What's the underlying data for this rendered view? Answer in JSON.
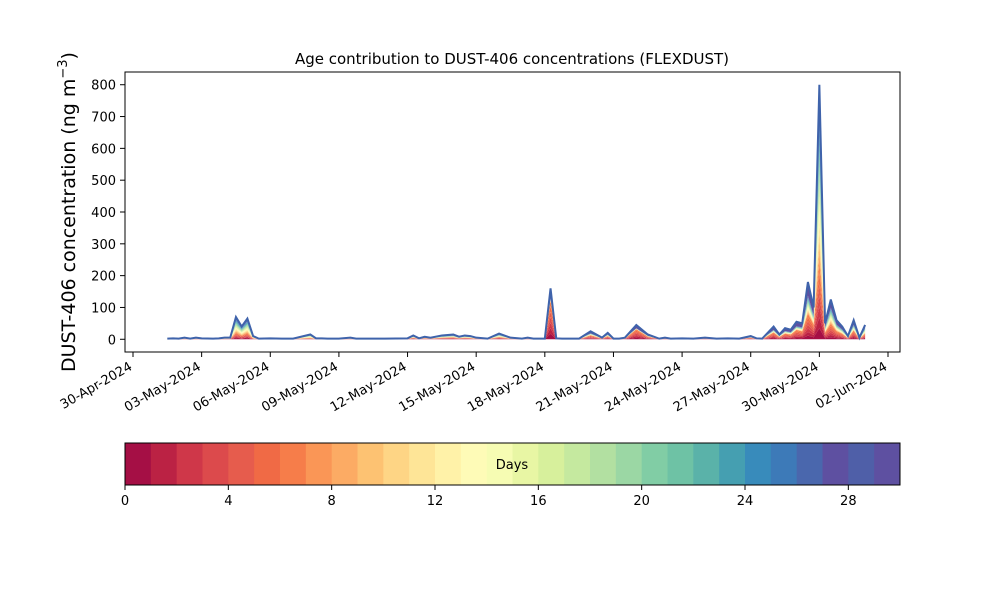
{
  "chart_data": {
    "type": "area",
    "title": "Age contribution to DUST-406 concentrations (FLEXDUST)",
    "ylabel_main": "DUST-406 concentration (ng m",
    "ylabel_sup": "−3",
    "ylabel_close": ")",
    "xlabel": "",
    "ylim": [
      -40,
      840
    ],
    "yticks": [
      0,
      100,
      200,
      300,
      400,
      500,
      600,
      700,
      800
    ],
    "x_start": "2024-04-30",
    "x_end": "2024-06-02",
    "xticks": [
      "30-Apr-2024",
      "03-May-2024",
      "06-May-2024",
      "09-May-2024",
      "12-May-2024",
      "15-May-2024",
      "18-May-2024",
      "21-May-2024",
      "24-May-2024",
      "27-May-2024",
      "30-May-2024",
      "02-Jun-2024"
    ],
    "xtick_days": [
      0,
      3,
      6,
      9,
      12,
      15,
      18,
      21,
      24,
      27,
      30,
      33
    ],
    "grid": false,
    "series": [
      {
        "x_days": [
          1.5,
          1.75,
          2.0,
          2.25,
          2.5,
          2.75,
          3.0,
          3.5,
          3.75,
          4.0,
          4.25,
          4.5,
          4.75,
          5.0,
          5.25,
          5.5,
          6.0,
          6.5,
          7.0,
          7.75,
          8.0,
          8.25,
          8.5,
          9.0,
          9.5,
          9.75,
          10.0,
          11.0,
          12.0,
          12.25,
          12.5,
          12.75,
          13.0,
          13.5,
          14.0,
          14.25,
          14.5,
          14.75,
          15.0,
          15.5,
          16.0,
          16.5,
          17.0,
          17.25,
          17.5,
          18.0,
          18.25,
          18.5,
          18.75,
          19.0,
          19.5,
          20.0,
          20.5,
          20.75,
          21.0,
          21.25,
          21.5,
          22.0,
          22.5,
          23.0,
          23.25,
          23.5,
          24.0,
          24.5,
          25.0,
          25.5,
          26.0,
          26.5,
          27.0,
          27.25,
          27.5,
          28.0,
          28.25,
          28.5,
          28.75,
          29.0,
          29.25,
          29.5,
          29.75,
          30.0,
          30.25,
          30.5,
          30.75,
          31.0,
          31.25,
          31.5,
          31.75,
          32.0
        ],
        "total": [
          2,
          3,
          2,
          5,
          2,
          5,
          3,
          2,
          3,
          5,
          5,
          70,
          40,
          65,
          10,
          2,
          3,
          2,
          2,
          15,
          3,
          3,
          2,
          2,
          5,
          2,
          2,
          2,
          3,
          12,
          3,
          8,
          5,
          12,
          15,
          8,
          12,
          10,
          5,
          2,
          18,
          5,
          2,
          5,
          2,
          2,
          160,
          3,
          2,
          2,
          2,
          25,
          5,
          20,
          2,
          2,
          5,
          45,
          15,
          2,
          5,
          2,
          3,
          2,
          5,
          2,
          3,
          2,
          10,
          3,
          2,
          40,
          15,
          35,
          30,
          55,
          50,
          180,
          100,
          800,
          50,
          125,
          60,
          40,
          10,
          60,
          5,
          45
        ],
        "recent": [
          0,
          0,
          0,
          0,
          0,
          0,
          0,
          0,
          0,
          0,
          0,
          5,
          3,
          5,
          0,
          0,
          0,
          0,
          0,
          0,
          0,
          0,
          0,
          0,
          0,
          0,
          0,
          0,
          0,
          3,
          0,
          2,
          1,
          3,
          4,
          2,
          3,
          2,
          1,
          0,
          4,
          1,
          0,
          1,
          0,
          0,
          120,
          0,
          0,
          0,
          0,
          10,
          2,
          8,
          0,
          0,
          1,
          30,
          8,
          0,
          2,
          0,
          1,
          0,
          2,
          0,
          1,
          0,
          4,
          1,
          0,
          18,
          6,
          15,
          12,
          25,
          20,
          60,
          35,
          80,
          15,
          30,
          18,
          12,
          2,
          20,
          1,
          10
        ]
      }
    ],
    "colorbar": {
      "label": "Days",
      "ticks": [
        "0",
        "4",
        "8",
        "12",
        "16",
        "20",
        "24",
        "28"
      ],
      "tick_values": [
        0,
        4,
        8,
        12,
        16,
        20,
        24,
        28
      ],
      "max": 30,
      "colors": [
        "#a50f45",
        "#bb2244",
        "#cf3749",
        "#dc4a4c",
        "#e65c4d",
        "#f06a45",
        "#f67d4a",
        "#fa9656",
        "#fcab64",
        "#fdc272",
        "#fed585",
        "#fee597",
        "#fff2a8",
        "#fefbb7",
        "#f6fcb3",
        "#e8f6a4",
        "#d7f09c",
        "#c5e99f",
        "#b2e0a1",
        "#9bd7a4",
        "#81cda5",
        "#6ec2a5",
        "#5ab2a9",
        "#459fb1",
        "#388bbb",
        "#3d7ab8",
        "#4a67ad",
        "#5e50a1"
      ]
    },
    "line_color": "#3f63ab"
  }
}
